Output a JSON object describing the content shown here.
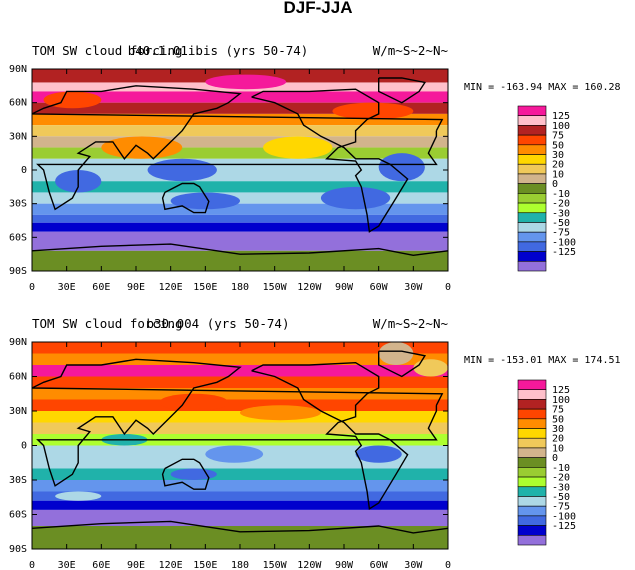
{
  "figure_title": "DJF-JJA",
  "chart_data": [
    {
      "type": "heatmap",
      "title_left": "TOM SW cloud forcing",
      "title_center": "b40.1.01ibis (yrs 50-74)",
      "title_right": "W/m~S~2~N~",
      "stats": "MIN = -163.94 MAX = 160.28",
      "xticks": [
        "0",
        "30E",
        "60E",
        "90E",
        "120E",
        "150E",
        "180",
        "150W",
        "120W",
        "90W",
        "60W",
        "30W",
        "0"
      ],
      "yticks": [
        "90N",
        "60N",
        "30N",
        "0",
        "30S",
        "60S",
        "90S"
      ],
      "levels": [
        "125",
        "100",
        "75",
        "50",
        "30",
        "20",
        "10",
        "0",
        "-10",
        "-20",
        "-30",
        "-50",
        "-75",
        "-100",
        "-125"
      ],
      "colors": [
        "#f5199b",
        "#ffc0cb",
        "#b22222",
        "#ff4500",
        "#ff8c00",
        "#ffd700",
        "#f0c95a",
        "#d2b48c",
        "#6b8e23",
        "#9acd32",
        "#adff2f",
        "#20b2aa",
        "#add8e6",
        "#6495ed",
        "#4169e1",
        "#0000cd",
        "#9370db"
      ],
      "lon_range": [
        0,
        360
      ],
      "lat_range": [
        -90,
        90
      ]
    },
    {
      "type": "heatmap",
      "title_left": "TOM SW cloud forcing",
      "title_center": "b30.004 (yrs 50-74)",
      "title_right": "W/m~S~2~N~",
      "stats": "MIN = -153.01 MAX = 174.51",
      "xticks": [
        "0",
        "30E",
        "60E",
        "90E",
        "120E",
        "150E",
        "180",
        "150W",
        "120W",
        "90W",
        "60W",
        "30W",
        "0"
      ],
      "yticks": [
        "90N",
        "60N",
        "30N",
        "0",
        "30S",
        "60S",
        "90S"
      ],
      "levels": [
        "125",
        "100",
        "75",
        "50",
        "30",
        "20",
        "10",
        "0",
        "-10",
        "-20",
        "-30",
        "-50",
        "-75",
        "-100",
        "-125"
      ],
      "colors": [
        "#f5199b",
        "#ffc0cb",
        "#b22222",
        "#ff4500",
        "#ff8c00",
        "#ffd700",
        "#f0c95a",
        "#d2b48c",
        "#6b8e23",
        "#9acd32",
        "#adff2f",
        "#20b2aa",
        "#add8e6",
        "#6495ed",
        "#4169e1",
        "#0000cd",
        "#9370db"
      ],
      "lon_range": [
        0,
        360
      ],
      "lat_range": [
        -90,
        90
      ]
    }
  ]
}
